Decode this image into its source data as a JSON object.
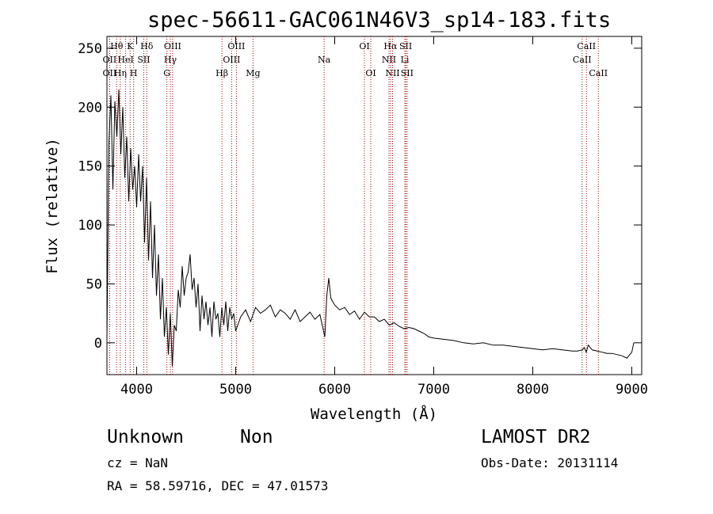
{
  "chart_data": {
    "type": "line",
    "title": "spec-56611-GAC061N46V3_sp14-183.fits",
    "xlabel": "Wavelength (Å)",
    "ylabel": "Flux (relative)",
    "xlim": [
      3700,
      9100
    ],
    "ylim": [
      -27,
      260
    ],
    "x_ticks": [
      4000,
      5000,
      6000,
      7000,
      8000,
      9000
    ],
    "y_ticks": [
      0,
      50,
      100,
      150,
      200,
      250
    ],
    "line_color": "#000000",
    "marker_color": "#aa0000",
    "series": [
      {
        "x": [
          3700,
          3720,
          3740,
          3760,
          3780,
          3800,
          3820,
          3840,
          3860,
          3880,
          3900,
          3920,
          3940,
          3960,
          3980,
          4000,
          4020,
          4040,
          4060,
          4080,
          4100,
          4120,
          4140,
          4160,
          4180,
          4200,
          4220,
          4240,
          4260,
          4280,
          4300,
          4320,
          4340,
          4360,
          4380,
          4400,
          4420,
          4440,
          4460,
          4480,
          4500,
          4520,
          4540,
          4560,
          4580,
          4600,
          4620,
          4640,
          4660,
          4680,
          4700,
          4720,
          4740,
          4760,
          4780,
          4800,
          4820,
          4840,
          4860,
          4880,
          4900,
          4920,
          4940,
          4960,
          4980,
          5000,
          5050,
          5100,
          5150,
          5200,
          5250,
          5300,
          5350,
          5400,
          5450,
          5500,
          5550,
          5600,
          5650,
          5700,
          5750,
          5800,
          5850,
          5900,
          5920,
          5940,
          5960,
          5980,
          6000,
          6050,
          6100,
          6150,
          6200,
          6250,
          6300,
          6350,
          6400,
          6450,
          6500,
          6550,
          6600,
          6650,
          6700,
          6750,
          6800,
          6850,
          6900,
          6950,
          7000,
          7100,
          7200,
          7300,
          7400,
          7500,
          7600,
          7700,
          7800,
          7900,
          8000,
          8100,
          8200,
          8300,
          8400,
          8450,
          8500,
          8520,
          8540,
          8560,
          8600,
          8650,
          8700,
          8750,
          8800,
          8850,
          8900,
          8950,
          8980,
          9000,
          9020
        ],
        "y": [
          5,
          170,
          210,
          130,
          205,
          175,
          215,
          160,
          200,
          140,
          175,
          120,
          165,
          130,
          150,
          115,
          160,
          120,
          150,
          85,
          140,
          70,
          120,
          55,
          100,
          40,
          75,
          20,
          55,
          5,
          30,
          -10,
          25,
          -20,
          15,
          10,
          45,
          30,
          65,
          40,
          55,
          60,
          75,
          45,
          55,
          30,
          50,
          10,
          40,
          20,
          35,
          15,
          30,
          5,
          35,
          20,
          25,
          5,
          30,
          15,
          35,
          10,
          30,
          20,
          25,
          10,
          22,
          28,
          18,
          30,
          25,
          28,
          32,
          22,
          28,
          25,
          20,
          28,
          18,
          22,
          26,
          20,
          24,
          5,
          40,
          55,
          38,
          35,
          32,
          28,
          30,
          24,
          27,
          20,
          26,
          22,
          22,
          18,
          20,
          15,
          17,
          14,
          12,
          13,
          12,
          10,
          8,
          5,
          4,
          3,
          2,
          0,
          -1,
          0,
          -2,
          -2,
          -3,
          -4,
          -5,
          -6,
          -5,
          -6,
          -7,
          -7,
          -6,
          -4,
          -8,
          -2,
          -6,
          -7,
          -8,
          -9,
          -9,
          -10,
          -11,
          -13,
          -10,
          -8,
          0
        ]
      }
    ],
    "line_markers": [
      {
        "label": "Hθ",
        "x": 3798,
        "row": 1
      },
      {
        "label": "K",
        "x": 3934,
        "row": 1
      },
      {
        "label": "Hδ",
        "x": 4102,
        "row": 1
      },
      {
        "label": "OIII",
        "x": 4363,
        "row": 1
      },
      {
        "label": "OIII",
        "x": 5007,
        "row": 1
      },
      {
        "label": "OI",
        "x": 6300,
        "row": 1
      },
      {
        "label": "Hα",
        "x": 6563,
        "row": 1
      },
      {
        "label": "SII",
        "x": 6717,
        "row": 1
      },
      {
        "label": "CaII",
        "x": 8542,
        "row": 1
      },
      {
        "label": "OII",
        "x": 3727,
        "row": 2
      },
      {
        "label": "HeI",
        "x": 3889,
        "row": 2
      },
      {
        "label": "SII",
        "x": 4072,
        "row": 2
      },
      {
        "label": "Hγ",
        "x": 4340,
        "row": 2
      },
      {
        "label": "OIII",
        "x": 4959,
        "row": 2
      },
      {
        "label": "Na",
        "x": 5893,
        "row": 2
      },
      {
        "label": "NII",
        "x": 6548,
        "row": 2
      },
      {
        "label": "Li",
        "x": 6708,
        "row": 2
      },
      {
        "label": "CaII",
        "x": 8498,
        "row": 2
      },
      {
        "label": "OII",
        "x": 3727,
        "row": 3
      },
      {
        "label": "Hη",
        "x": 3835,
        "row": 3
      },
      {
        "label": "H",
        "x": 3969,
        "row": 3
      },
      {
        "label": "G",
        "x": 4305,
        "row": 3
      },
      {
        "label": "Hβ",
        "x": 4861,
        "row": 3
      },
      {
        "label": "Mg",
        "x": 5175,
        "row": 3
      },
      {
        "label": "OI",
        "x": 6364,
        "row": 3
      },
      {
        "label": "NII",
        "x": 6584,
        "row": 3
      },
      {
        "label": "SII",
        "x": 6731,
        "row": 3
      },
      {
        "label": "CaII",
        "x": 8662,
        "row": 3
      }
    ]
  },
  "info": {
    "object_class": "Unknown",
    "subclass": "Non",
    "survey": "LAMOST DR2",
    "cz": "cz = NaN",
    "obs_date": "Obs-Date: 20131114",
    "coords": "RA =  58.59716, DEC =  47.01573"
  }
}
